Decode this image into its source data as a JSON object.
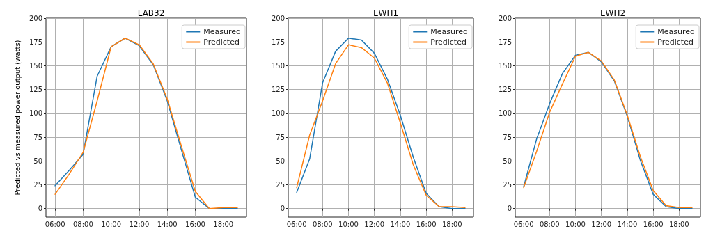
{
  "chart_data": [
    {
      "type": "line",
      "title": "LAB32",
      "ylabel": "Predicted vs measured power output (watts)",
      "x": [
        6,
        7,
        8,
        9,
        10,
        11,
        12,
        13,
        14,
        15,
        16,
        17,
        18,
        19
      ],
      "series": [
        {
          "name": "Measured",
          "color": "#1f77b4",
          "values": [
            24,
            40,
            57,
            139,
            170,
            179,
            171,
            151,
            113,
            62,
            12,
            0,
            0,
            0
          ]
        },
        {
          "name": "Predicted",
          "color": "#ff7f0e",
          "values": [
            15,
            36,
            59,
            113,
            170,
            179,
            172,
            152,
            115,
            66,
            18,
            0,
            1,
            1
          ]
        }
      ],
      "xlim": [
        5.35,
        19.65
      ],
      "xticks": [
        {
          "value": 6,
          "label": "06:00"
        },
        {
          "value": 8,
          "label": "08:00"
        },
        {
          "value": 10,
          "label": "10:00"
        },
        {
          "value": 12,
          "label": "12:00"
        },
        {
          "value": 14,
          "label": "14:00"
        },
        {
          "value": 16,
          "label": "16:00"
        },
        {
          "value": 18,
          "label": "18:00"
        }
      ],
      "ylim": [
        -9,
        200
      ],
      "yticks": [
        0,
        25,
        50,
        75,
        100,
        125,
        150,
        175,
        200
      ],
      "grid": true,
      "legend": "top right",
      "marker": "none",
      "line_style": "solid"
    },
    {
      "type": "line",
      "title": "EWH1",
      "x": [
        6,
        7,
        8,
        9,
        10,
        11,
        12,
        13,
        14,
        15,
        16,
        17,
        18,
        19
      ],
      "series": [
        {
          "name": "Measured",
          "color": "#1f77b4",
          "values": [
            17,
            52,
            132,
            165,
            179,
            177,
            163,
            136,
            98,
            54,
            16,
            2,
            0,
            0
          ]
        },
        {
          "name": "Predicted",
          "color": "#ff7f0e",
          "values": [
            22,
            77,
            113,
            152,
            172,
            169,
            158,
            132,
            90,
            46,
            14,
            2,
            2,
            1
          ]
        }
      ],
      "xlim": [
        5.35,
        19.65
      ],
      "xticks": [
        {
          "value": 6,
          "label": "06:00"
        },
        {
          "value": 8,
          "label": "08:00"
        },
        {
          "value": 10,
          "label": "10:00"
        },
        {
          "value": 12,
          "label": "12:00"
        },
        {
          "value": 14,
          "label": "14:00"
        },
        {
          "value": 16,
          "label": "16:00"
        },
        {
          "value": 18,
          "label": "18:00"
        }
      ],
      "ylim": [
        -9,
        200
      ],
      "yticks": [
        0,
        25,
        50,
        75,
        100,
        125,
        150,
        175,
        200
      ],
      "grid": true,
      "legend": "top right",
      "marker": "none",
      "line_style": "solid"
    },
    {
      "type": "line",
      "title": "EWH2",
      "x": [
        6,
        7,
        8,
        9,
        10,
        11,
        12,
        13,
        14,
        15,
        16,
        17,
        18,
        19
      ],
      "series": [
        {
          "name": "Measured",
          "color": "#1f77b4",
          "values": [
            23,
            73,
            110,
            142,
            161,
            164,
            154,
            134,
            97,
            51,
            15,
            2,
            0,
            0
          ]
        },
        {
          "name": "Predicted",
          "color": "#ff7f0e",
          "values": [
            22,
            60,
            101,
            131,
            160,
            164,
            155,
            135,
            98,
            55,
            19,
            3,
            1,
            1
          ]
        }
      ],
      "xlim": [
        5.35,
        19.65
      ],
      "xticks": [
        {
          "value": 6,
          "label": "06:00"
        },
        {
          "value": 8,
          "label": "08:00"
        },
        {
          "value": 10,
          "label": "10:00"
        },
        {
          "value": 12,
          "label": "12:00"
        },
        {
          "value": 14,
          "label": "14:00"
        },
        {
          "value": 16,
          "label": "16:00"
        },
        {
          "value": 18,
          "label": "18:00"
        }
      ],
      "ylim": [
        -9,
        200
      ],
      "yticks": [
        0,
        25,
        50,
        75,
        100,
        125,
        150,
        175,
        200
      ],
      "grid": true,
      "legend": "top right",
      "marker": "none",
      "line_style": "solid"
    }
  ]
}
